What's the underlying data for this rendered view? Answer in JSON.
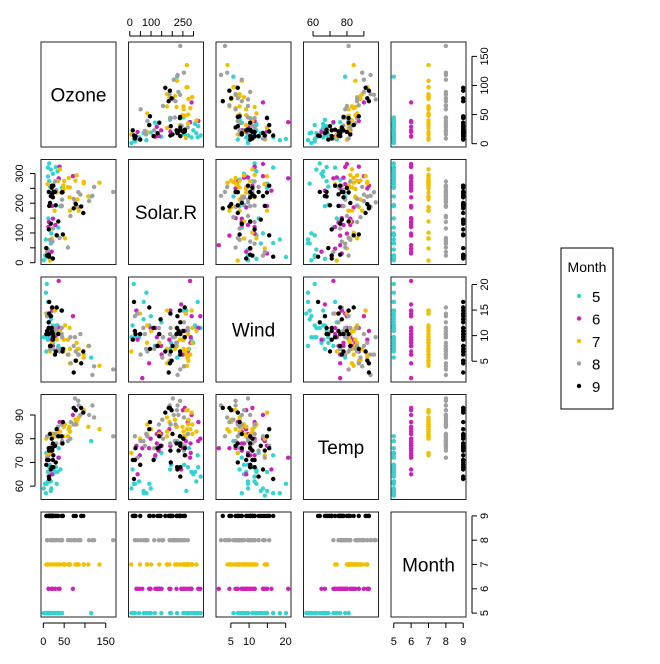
{
  "chart_data": {
    "type": "scatter",
    "subtype": "scatterplot-matrix",
    "variables": [
      "Ozone",
      "Solar.R",
      "Wind",
      "Temp",
      "Month"
    ],
    "color_by": "Month",
    "legend": {
      "title": "Month",
      "placement": "right",
      "entries": [
        "5",
        "6",
        "7",
        "8",
        "9"
      ]
    },
    "colors": {
      "5": "#33d3d3",
      "6": "#cc22bb",
      "7": "#f0c000",
      "8": "#a0a0a0",
      "9": "#000000"
    },
    "ranges": {
      "Ozone": [
        1,
        168
      ],
      "Solar.R": [
        7,
        334
      ],
      "Wind": [
        1.7,
        20.7
      ],
      "Temp": [
        56,
        97
      ],
      "Month": [
        5,
        9
      ]
    },
    "axes": {
      "top": [
        {
          "variable": "Solar.R",
          "ticks": [
            0,
            50,
            100,
            150,
            200,
            250,
            300
          ],
          "labels": [
            "0",
            "100",
            "250"
          ],
          "label_values": [
            0,
            100,
            250
          ]
        },
        {
          "variable": "Temp",
          "ticks": [
            60,
            70,
            80,
            90
          ],
          "labels": [
            "60",
            "80"
          ],
          "label_values": [
            60,
            80
          ]
        }
      ],
      "right": [
        {
          "variable": "Ozone",
          "ticks": [
            0,
            50,
            100,
            150
          ],
          "labels": [
            "0",
            "50",
            "100",
            "150"
          ],
          "label_values": [
            0,
            50,
            100,
            150
          ]
        },
        {
          "variable": "Wind",
          "ticks": [
            5,
            10,
            15,
            20
          ],
          "labels": [
            "5",
            "10",
            "15",
            "20"
          ],
          "label_values": [
            5,
            10,
            15,
            20
          ]
        },
        {
          "variable": "Month",
          "ticks": [
            5,
            6,
            7,
            8,
            9
          ],
          "labels": [
            "5",
            "6",
            "7",
            "8",
            "9"
          ],
          "label_values": [
            5,
            6,
            7,
            8,
            9
          ]
        }
      ],
      "left": [
        {
          "variable": "Solar.R",
          "ticks": [
            0,
            50,
            100,
            150,
            200,
            250,
            300
          ],
          "labels": [
            "0",
            "100",
            "200",
            "300"
          ],
          "label_values": [
            0,
            100,
            200,
            300
          ]
        },
        {
          "variable": "Temp",
          "ticks": [
            60,
            70,
            80,
            90
          ],
          "labels": [
            "60",
            "70",
            "80",
            "90"
          ],
          "label_values": [
            60,
            70,
            80,
            90
          ]
        }
      ],
      "bottom": [
        {
          "variable": "Ozone",
          "ticks": [
            0,
            50,
            100,
            150
          ],
          "labels": [
            "0",
            "50",
            "150"
          ],
          "label_values": [
            0,
            50,
            150
          ]
        },
        {
          "variable": "Wind",
          "ticks": [
            5,
            10,
            15,
            20
          ],
          "labels": [
            "5",
            "10",
            "20"
          ],
          "label_values": [
            5,
            10,
            20
          ]
        },
        {
          "variable": "Month",
          "ticks": [
            5,
            6,
            7,
            8,
            9
          ],
          "labels": [
            "5",
            "6",
            "7",
            "8",
            "9"
          ],
          "label_values": [
            5,
            6,
            7,
            8,
            9
          ]
        }
      ]
    },
    "data": {
      "Ozone": [
        41,
        36,
        12,
        18,
        null,
        28,
        23,
        19,
        8,
        null,
        7,
        16,
        11,
        14,
        18,
        14,
        34,
        6,
        30,
        11,
        1,
        11,
        4,
        32,
        null,
        null,
        null,
        23,
        45,
        115,
        37,
        null,
        null,
        null,
        null,
        null,
        null,
        29,
        null,
        71,
        39,
        null,
        null,
        23,
        null,
        null,
        21,
        37,
        20,
        12,
        13,
        null,
        null,
        null,
        null,
        null,
        null,
        null,
        null,
        null,
        null,
        135,
        49,
        32,
        null,
        64,
        40,
        77,
        97,
        97,
        85,
        null,
        10,
        27,
        null,
        7,
        48,
        35,
        61,
        79,
        63,
        16,
        null,
        null,
        80,
        108,
        20,
        52,
        82,
        50,
        64,
        59,
        39,
        9,
        16,
        78,
        35,
        66,
        122,
        89,
        110,
        null,
        null,
        44,
        28,
        65,
        null,
        22,
        59,
        23,
        31,
        44,
        21,
        9,
        null,
        45,
        168,
        73,
        null,
        76,
        118,
        84,
        85,
        96,
        78,
        73,
        91,
        47,
        32,
        20,
        23,
        21,
        24,
        44,
        21,
        28,
        9,
        13,
        46,
        18,
        13,
        24,
        16,
        13,
        23,
        36,
        7,
        14,
        30,
        null,
        14,
        18,
        20
      ],
      "Solar.R": [
        190,
        118,
        149,
        313,
        null,
        null,
        299,
        99,
        19,
        194,
        null,
        256,
        290,
        274,
        65,
        334,
        307,
        78,
        322,
        44,
        8,
        320,
        25,
        92,
        66,
        266,
        null,
        13,
        252,
        223,
        279,
        286,
        287,
        242,
        186,
        220,
        264,
        127,
        273,
        291,
        323,
        259,
        250,
        148,
        332,
        322,
        191,
        284,
        37,
        120,
        137,
        150,
        59,
        91,
        250,
        135,
        127,
        47,
        98,
        31,
        138,
        269,
        248,
        236,
        101,
        175,
        314,
        276,
        267,
        272,
        175,
        139,
        264,
        175,
        291,
        48,
        260,
        274,
        285,
        187,
        220,
        7,
        258,
        295,
        294,
        223,
        81,
        82,
        213,
        275,
        253,
        254,
        83,
        24,
        77,
        null,
        null,
        null,
        255,
        229,
        207,
        222,
        137,
        192,
        273,
        157,
        64,
        71,
        51,
        115,
        244,
        190,
        259,
        36,
        255,
        212,
        238,
        215,
        153,
        203,
        225,
        237,
        188,
        167,
        197,
        183,
        189,
        95,
        92,
        252,
        220,
        230,
        259,
        236,
        259,
        238,
        24,
        112,
        237,
        224,
        27,
        238,
        201,
        238,
        14,
        139,
        49,
        20,
        193,
        145,
        191,
        131,
        223
      ],
      "Wind": [
        7.4,
        8.0,
        12.6,
        11.5,
        14.3,
        14.9,
        8.6,
        13.8,
        20.1,
        8.6,
        6.9,
        9.7,
        9.2,
        10.9,
        13.2,
        11.5,
        12.0,
        18.4,
        11.5,
        9.7,
        9.7,
        16.6,
        9.7,
        12.0,
        16.6,
        14.9,
        8.0,
        12.0,
        14.9,
        5.7,
        7.4,
        8.6,
        9.7,
        16.1,
        9.2,
        8.6,
        14.3,
        9.7,
        6.9,
        13.8,
        11.5,
        10.9,
        9.2,
        8.0,
        13.8,
        11.5,
        14.9,
        20.7,
        9.2,
        11.5,
        10.3,
        6.3,
        1.7,
        4.6,
        6.3,
        8.0,
        8.0,
        10.3,
        11.5,
        14.9,
        8.0,
        4.1,
        9.2,
        9.2,
        10.9,
        4.6,
        10.9,
        5.1,
        6.3,
        5.7,
        7.4,
        8.6,
        14.3,
        14.9,
        14.9,
        14.3,
        6.9,
        10.3,
        6.3,
        5.1,
        11.5,
        6.9,
        9.7,
        11.5,
        8.6,
        8.0,
        8.6,
        12.0,
        7.4,
        7.4,
        7.4,
        9.2,
        6.9,
        13.8,
        7.4,
        6.9,
        7.4,
        4.6,
        4.0,
        10.3,
        8.0,
        8.6,
        11.5,
        11.5,
        11.5,
        9.7,
        11.5,
        10.3,
        6.3,
        7.4,
        10.9,
        10.3,
        15.5,
        14.3,
        12.6,
        9.7,
        3.4,
        8.0,
        5.7,
        9.7,
        2.3,
        6.3,
        6.3,
        6.9,
        5.1,
        2.8,
        4.6,
        7.4,
        15.5,
        10.9,
        10.3,
        10.9,
        9.7,
        14.9,
        15.5,
        6.3,
        10.9,
        11.5,
        6.9,
        13.8,
        10.3,
        10.3,
        8.0,
        12.6,
        9.2,
        10.3,
        10.3,
        16.6,
        6.9,
        13.2,
        14.3,
        8.0,
        11.5
      ],
      "Temp": [
        67,
        72,
        74,
        62,
        56,
        66,
        65,
        59,
        61,
        69,
        74,
        69,
        66,
        68,
        58,
        64,
        66,
        57,
        68,
        62,
        59,
        73,
        61,
        61,
        57,
        58,
        57,
        67,
        81,
        79,
        76,
        78,
        74,
        67,
        84,
        85,
        79,
        82,
        87,
        90,
        87,
        93,
        92,
        82,
        80,
        79,
        77,
        72,
        65,
        73,
        76,
        77,
        76,
        76,
        76,
        75,
        78,
        73,
        80,
        77,
        83,
        84,
        85,
        81,
        84,
        83,
        83,
        88,
        92,
        92,
        89,
        82,
        73,
        81,
        91,
        80,
        81,
        82,
        84,
        87,
        85,
        74,
        81,
        82,
        86,
        85,
        82,
        86,
        88,
        86,
        83,
        81,
        81,
        81,
        82,
        86,
        85,
        87,
        89,
        90,
        90,
        92,
        86,
        86,
        82,
        80,
        79,
        77,
        79,
        76,
        78,
        78,
        77,
        72,
        75,
        79,
        81,
        86,
        88,
        97,
        94,
        96,
        94,
        91,
        92,
        93,
        93,
        87,
        84,
        80,
        78,
        75,
        73,
        81,
        76,
        77,
        71,
        71,
        78,
        67,
        76,
        68,
        82,
        64,
        71,
        81,
        69,
        63,
        70,
        77,
        75,
        76,
        68
      ],
      "Month": [
        5,
        5,
        5,
        5,
        5,
        5,
        5,
        5,
        5,
        5,
        5,
        5,
        5,
        5,
        5,
        5,
        5,
        5,
        5,
        5,
        5,
        5,
        5,
        5,
        5,
        5,
        5,
        5,
        5,
        5,
        5,
        6,
        6,
        6,
        6,
        6,
        6,
        6,
        6,
        6,
        6,
        6,
        6,
        6,
        6,
        6,
        6,
        6,
        6,
        6,
        6,
        6,
        6,
        6,
        6,
        6,
        6,
        6,
        6,
        6,
        6,
        7,
        7,
        7,
        7,
        7,
        7,
        7,
        7,
        7,
        7,
        7,
        7,
        7,
        7,
        7,
        7,
        7,
        7,
        7,
        7,
        7,
        7,
        7,
        7,
        7,
        7,
        7,
        7,
        7,
        7,
        7,
        8,
        8,
        8,
        8,
        8,
        8,
        8,
        8,
        8,
        8,
        8,
        8,
        8,
        8,
        8,
        8,
        8,
        8,
        8,
        8,
        8,
        8,
        8,
        8,
        8,
        8,
        8,
        8,
        8,
        8,
        8,
        9,
        9,
        9,
        9,
        9,
        9,
        9,
        9,
        9,
        9,
        9,
        9,
        9,
        9,
        9,
        9,
        9,
        9,
        9,
        9,
        9,
        9,
        9,
        9,
        9,
        9,
        9,
        9,
        9,
        9
      ]
    }
  }
}
